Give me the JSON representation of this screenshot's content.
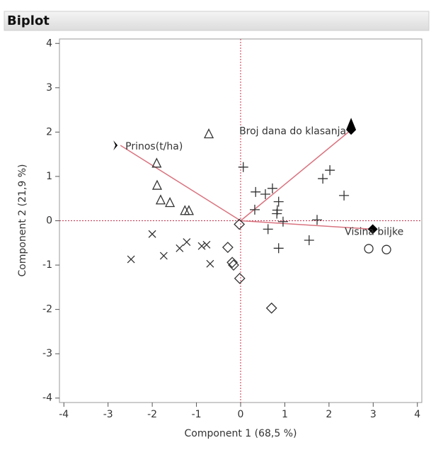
{
  "chart_data": {
    "type": "biplot",
    "title": "Biplot",
    "x_label": "Component 1  (68,5 %)",
    "y_label": "Component 2  (21,9 %)",
    "xlim": [
      -4.1,
      4.1
    ],
    "ylim": [
      -4.1,
      4.1
    ],
    "xticks": [
      -4,
      -3,
      -2,
      -1,
      0,
      1,
      2,
      3,
      4
    ],
    "yticks": [
      -4,
      -3,
      -2,
      -1,
      0,
      1,
      2,
      3,
      4
    ],
    "reference_color": "#c0304a",
    "series": [
      {
        "marker": "triangle",
        "color": "#333333",
        "x": [
          -1.9,
          -1.89,
          -1.81,
          -1.6,
          -1.26,
          -1.17,
          -0.72
        ],
        "y": [
          1.29,
          0.79,
          0.46,
          0.4,
          0.22,
          0.22,
          1.95
        ]
      },
      {
        "marker": "x",
        "color": "#333333",
        "x": [
          -2.0,
          -2.48,
          -1.74,
          -1.38,
          -1.22,
          -0.88,
          -0.77,
          -0.69
        ],
        "y": [
          -0.3,
          -0.87,
          -0.79,
          -0.62,
          -0.48,
          -0.57,
          -0.54,
          -0.97
        ]
      },
      {
        "marker": "diamond",
        "color": "#333333",
        "x": [
          -0.29,
          -0.19,
          -0.16,
          -0.02,
          0.7,
          -0.03
        ],
        "y": [
          -0.6,
          -0.94,
          -1.0,
          -1.3,
          -1.97,
          -0.08
        ]
      },
      {
        "marker": "plus",
        "color": "#333333",
        "x": [
          0.06,
          0.34,
          0.32,
          0.56,
          0.72,
          0.86,
          0.83,
          0.82,
          0.96,
          0.62,
          0.86,
          1.55,
          1.73,
          1.86,
          2.02,
          2.34
        ],
        "y": [
          1.21,
          0.65,
          0.25,
          0.6,
          0.73,
          0.43,
          0.24,
          0.16,
          -0.02,
          -0.19,
          -0.62,
          -0.44,
          0.02,
          0.95,
          1.14,
          0.57
        ]
      },
      {
        "marker": "circle",
        "color": "#333333",
        "x": [
          2.9,
          3.3
        ],
        "y": [
          -0.63,
          -0.65
        ]
      }
    ],
    "vectors": [
      {
        "label": "Prinos(t/ha)",
        "x": -2.72,
        "y": 1.7
      },
      {
        "label": "Broj dana do klasanja",
        "x": 2.5,
        "y": 2.05
      },
      {
        "label": "Visina biljke",
        "x": 2.99,
        "y": -0.19
      }
    ],
    "vector_color": "#d9737f"
  }
}
